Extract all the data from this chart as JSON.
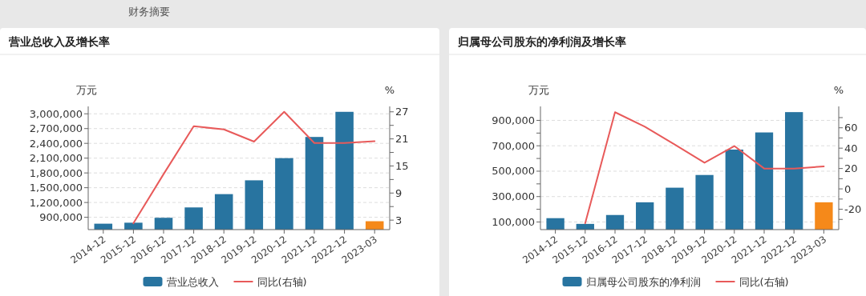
{
  "chart_data": [
    {
      "type": "bar",
      "title": "营业总收入及增长率",
      "ylabel": "万元",
      "y2label": "%",
      "annotations": [
        "财务摘要"
      ],
      "categories": [
        "2014-12",
        "2015-12",
        "2016-12",
        "2017-12",
        "2018-12",
        "2019-12",
        "2020-12",
        "2021-12",
        "2022-12",
        "2023-03"
      ],
      "series": [
        {
          "name": "营业总收入",
          "colors": [
            "#2874a0",
            "#2874a0",
            "#2874a0",
            "#2874a0",
            "#2874a0",
            "#2874a0",
            "#2874a0",
            "#2874a0",
            "#2874a0",
            "#f5891a"
          ],
          "values": [
            770000,
            790000,
            890000,
            1100000,
            1370000,
            1650000,
            2100000,
            2530000,
            3040000,
            820000
          ]
        },
        {
          "name": "同比(右轴)",
          "type": "line",
          "axis": "y2",
          "color": "#e85a5a",
          "values": [
            null,
            2.3,
            13.2,
            23.8,
            23.1,
            20.4,
            27.0,
            20.1,
            20.1,
            20.5
          ]
        }
      ],
      "ylim": [
        650000,
        3150000
      ],
      "yticks": [
        {
          "value": 900000,
          "label": "900,000"
        },
        {
          "value": 1200000,
          "label": "1,200,000"
        },
        {
          "value": 1500000,
          "label": "1,500,000"
        },
        {
          "value": 1800000,
          "label": "1,800,000"
        },
        {
          "value": 2100000,
          "label": "2,100,000"
        },
        {
          "value": 2400000,
          "label": "2,400,000"
        },
        {
          "value": 2700000,
          "label": "2,700,000"
        },
        {
          "value": 3000000,
          "label": "3,000,000"
        }
      ],
      "y2lim": [
        0.9,
        28.2
      ],
      "y2ticks": [
        3,
        {
          "value": 6,
          "label": null
        },
        9,
        {
          "value": 12,
          "label": null
        },
        15,
        {
          "value": 18,
          "label": null
        },
        21,
        {
          "value": 24,
          "label": null
        },
        27
      ],
      "grid": "y",
      "legend": "bottom"
    },
    {
      "type": "bar",
      "title": "归属母公司股东的净利润及增长率",
      "ylabel": "万元",
      "y2label": "%",
      "categories": [
        "2014-12",
        "2015-12",
        "2016-12",
        "2017-12",
        "2018-12",
        "2019-12",
        "2020-12",
        "2021-12",
        "2022-12",
        "2023-03"
      ],
      "series": [
        {
          "name": "归属母公司股东的净利润",
          "colors": [
            "#2874a0",
            "#2874a0",
            "#2874a0",
            "#2874a0",
            "#2874a0",
            "#2874a0",
            "#2874a0",
            "#2874a0",
            "#2874a0",
            "#f5891a"
          ],
          "values": [
            130000,
            85000,
            155000,
            255000,
            370000,
            470000,
            670000,
            805000,
            965000,
            255000
          ]
        },
        {
          "name": "同比(右轴)",
          "type": "line",
          "axis": "y2",
          "color": "#e85a5a",
          "values": [
            null,
            -33.8,
            75.3,
            61.0,
            43.6,
            25.7,
            42.1,
            20.0,
            20.0,
            22.1
          ]
        }
      ],
      "ylim": [
        40000,
        1010000
      ],
      "yticks": [
        {
          "value": 100000,
          "label": "100,000"
        },
        {
          "value": 200000,
          "label": null
        },
        {
          "value": 300000,
          "label": "300,000"
        },
        {
          "value": 400000,
          "label": null
        },
        {
          "value": 500000,
          "label": "500,000"
        },
        {
          "value": 600000,
          "label": null
        },
        {
          "value": 700000,
          "label": "700,000"
        },
        {
          "value": 800000,
          "label": null
        },
        {
          "value": 900000,
          "label": "900,000"
        }
      ],
      "y2lim": [
        -40,
        81
      ],
      "y2ticks": [
        {
          "value": -30,
          "label": null
        },
        -20,
        {
          "value": -10,
          "label": null
        },
        0,
        {
          "value": 10,
          "label": null
        },
        20,
        {
          "value": 30,
          "label": null
        },
        40,
        {
          "value": 50,
          "label": null
        },
        60,
        {
          "value": 70,
          "label": null
        }
      ],
      "grid": "y",
      "legend": "bottom"
    }
  ]
}
